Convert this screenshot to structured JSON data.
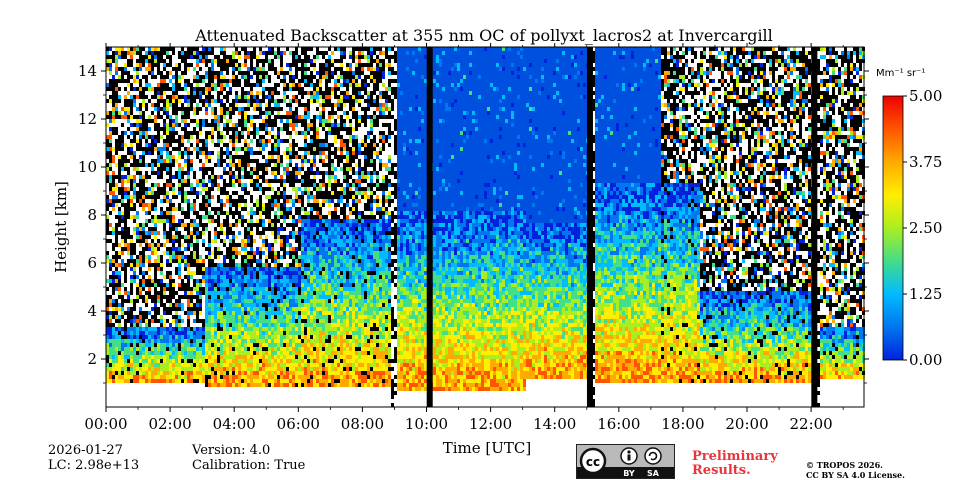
{
  "chart_data": {
    "type": "heatmap",
    "title": "Attenuated Backscatter at 355 nm OC of pollyxt_lacros2 at Invercargill",
    "xlabel": "Time [UTC]",
    "ylabel": "Height [km]",
    "x_ticks": [
      "00:00",
      "02:00",
      "04:00",
      "06:00",
      "08:00",
      "10:00",
      "12:00",
      "14:00",
      "16:00",
      "18:00",
      "20:00",
      "22:00"
    ],
    "x_range_hours": [
      0,
      23.65
    ],
    "y_ticks": [
      2,
      4,
      6,
      8,
      10,
      12,
      14
    ],
    "y_range_km": [
      0,
      15
    ],
    "colorbar": {
      "unit_label": "Mm⁻¹ sr⁻¹",
      "range": [
        0.0,
        5.0
      ],
      "ticks": [
        "0.00",
        "1.25",
        "2.50",
        "3.75",
        "5.00"
      ],
      "colormap": [
        "#0022dd",
        "#0077ee",
        "#00bbff",
        "#44dd88",
        "#aaee22",
        "#ffee00",
        "#ffaa00",
        "#ff5500",
        "#ee0000"
      ]
    },
    "data_gaps_hours": [
      10.1,
      15.1,
      22.1
    ],
    "clear_sky_window_hours": [
      8.9,
      17.3
    ],
    "profile_estimates": [
      {
        "start_h": 0.0,
        "end_h": 3.0,
        "cloud_base_km": 1.1,
        "signal_top_km": 3.5
      },
      {
        "start_h": 3.0,
        "end_h": 6.0,
        "cloud_base_km": 1.0,
        "signal_top_km": 6.0
      },
      {
        "start_h": 6.0,
        "end_h": 8.8,
        "cloud_base_km": 0.9,
        "signal_top_km": 8.0
      },
      {
        "start_h": 9.0,
        "end_h": 13.1,
        "cloud_base_km": 0.8,
        "signal_top_km": 8.3
      },
      {
        "start_h": 13.1,
        "end_h": 15.0,
        "cloud_base_km": 1.3,
        "signal_top_km": 7.8
      },
      {
        "start_h": 15.2,
        "end_h": 18.5,
        "cloud_base_km": 1.1,
        "signal_top_km": 9.5
      },
      {
        "start_h": 18.5,
        "end_h": 22.0,
        "cloud_base_km": 1.1,
        "signal_top_km": 5.0
      },
      {
        "start_h": 22.2,
        "end_h": 23.6,
        "cloud_base_km": 1.2,
        "signal_top_km": 3.5
      }
    ]
  },
  "footer": {
    "date": "2026-01-27",
    "lc": "LC: 2.98e+13",
    "version": "Version: 4.0",
    "calibration": "Calibration: True",
    "license_badge": {
      "left": "BY",
      "right": "SA"
    },
    "preliminary_line1": "Preliminary",
    "preliminary_line2": "Results.",
    "copyright_line1": "© TROPOS 2026.",
    "copyright_line2": "CC BY SA 4.0 License."
  }
}
